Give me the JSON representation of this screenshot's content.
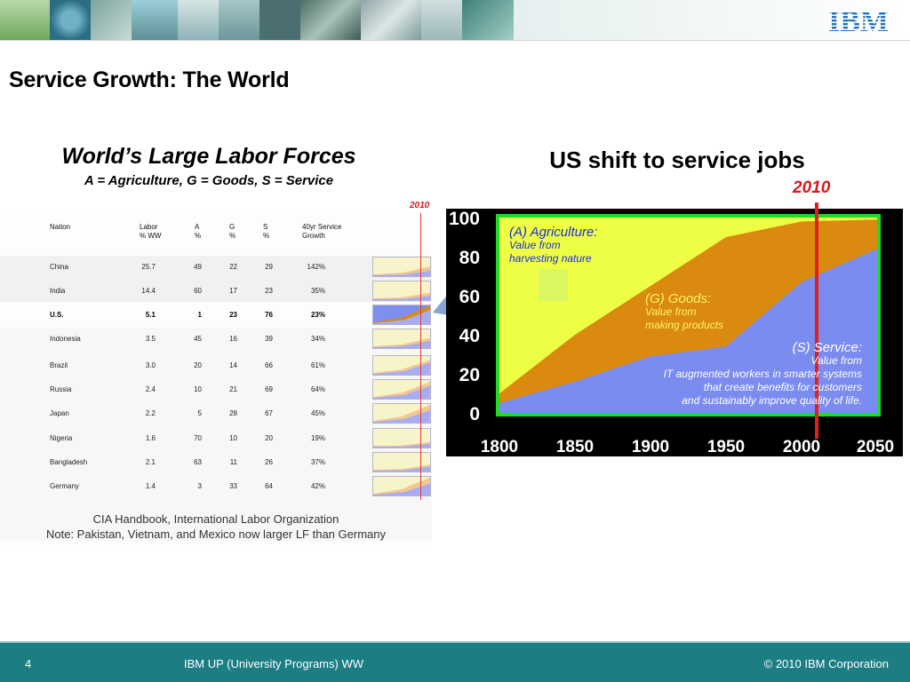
{
  "slide": {
    "title": "Service Growth: The World",
    "logo": "IBM",
    "logo_color": "#1f70c1"
  },
  "table": {
    "heading": "World’s Large Labor Forces",
    "subheading": "A = Agriculture, G = Goods, S = Service",
    "year_marker": "2010",
    "columns": {
      "nation": "Nation",
      "labor_1": "Labor",
      "labor_2": "% WW",
      "a_1": "A",
      "a_2": "%",
      "g_1": "G",
      "g_2": "%",
      "s_1": "S",
      "s_2": "%",
      "growth_1": "40yr Service",
      "growth_2": "Growth"
    },
    "rows": [
      {
        "nation": "China",
        "labor": "25.7",
        "a": "49",
        "g": "22",
        "s": "29",
        "growth": "142%",
        "bold": false
      },
      {
        "nation": "India",
        "labor": "14.4",
        "a": "60",
        "g": "17",
        "s": "23",
        "growth": "35%",
        "bold": false
      },
      {
        "nation": "U.S.",
        "labor": "5.1",
        "a": "1",
        "g": "23",
        "s": "76",
        "growth": "23%",
        "bold": true
      },
      {
        "nation": "Indonesia",
        "labor": "3.5",
        "a": "45",
        "g": "16",
        "s": "39",
        "growth": "34%",
        "bold": false
      },
      {
        "nation": "Brazil",
        "labor": "3.0",
        "a": "20",
        "g": "14",
        "s": "66",
        "growth": "61%",
        "bold": false
      },
      {
        "nation": "Russia",
        "labor": "2.4",
        "a": "10",
        "g": "21",
        "s": "69",
        "growth": "64%",
        "bold": false
      },
      {
        "nation": "Japan",
        "labor": "2.2",
        "a": "5",
        "g": "28",
        "s": "67",
        "growth": "45%",
        "bold": false
      },
      {
        "nation": "Nigeria",
        "labor": "1.6",
        "a": "70",
        "g": "10",
        "s": "20",
        "growth": "19%",
        "bold": false
      },
      {
        "nation": "Bangladesh",
        "labor": "2.1",
        "a": "63",
        "g": "11",
        "s": "26",
        "growth": "37%",
        "bold": false
      },
      {
        "nation": "Germany",
        "labor": "1.4",
        "a": "3",
        "g": "33",
        "s": "64",
        "growth": "42%",
        "bold": false
      }
    ],
    "source_line_1": "CIA Handbook, International Labor Organization",
    "source_line_2": "Note: Pakistan, Vietnam, and Mexico now larger LF than Germany"
  },
  "chart": {
    "heading": "US shift to service jobs",
    "year_marker": "2010",
    "agriculture_title": "(A) Agriculture:",
    "agriculture_line_1": "Value from",
    "agriculture_line_2": "harvesting nature",
    "goods_title": "(G) Goods:",
    "goods_line_1": "Value from",
    "goods_line_2": "making products",
    "service_title": "(S) Service:",
    "service_line_1": "Value from",
    "service_line_2": "IT augmented workers in smarter systems",
    "service_line_3": "that create benefits for customers",
    "service_line_4": "and sustainably improve quality of life."
  },
  "chart_data": {
    "type": "area",
    "title": "US shift to service jobs",
    "x": [
      1800,
      1850,
      1900,
      1950,
      2000,
      2050
    ],
    "xlim": [
      1800,
      2050
    ],
    "ylim": [
      0,
      100
    ],
    "yticks": [
      0,
      20,
      40,
      60,
      80,
      100
    ],
    "xticks": [
      1800,
      1850,
      1900,
      1950,
      2000,
      2050
    ],
    "series": [
      {
        "name": "(S) Service",
        "values": [
          5,
          16,
          29,
          34,
          67,
          84
        ],
        "color": "#7b8cf0"
      },
      {
        "name": "(G) Goods",
        "values": [
          10,
          40,
          65,
          90,
          98,
          99
        ],
        "color": "#d98a0f"
      },
      {
        "name": "(A) Agriculture",
        "values": [
          100,
          100,
          100,
          100,
          100,
          100
        ],
        "color": "#eefe44"
      }
    ],
    "stacking": "cumulative",
    "marker_x": 2010,
    "marker_label": "2010",
    "grid": false,
    "legend": "inline annotations",
    "colors": {
      "background": "#000000",
      "frame": "#1fdc23",
      "marker": "#e0201f",
      "axis_text": "#ffffff"
    }
  },
  "footer": {
    "page_number": "4",
    "program": "IBM UP (University Programs) WW",
    "copyright": "© 2010 IBM Corporation",
    "background": "#1c7d82"
  }
}
